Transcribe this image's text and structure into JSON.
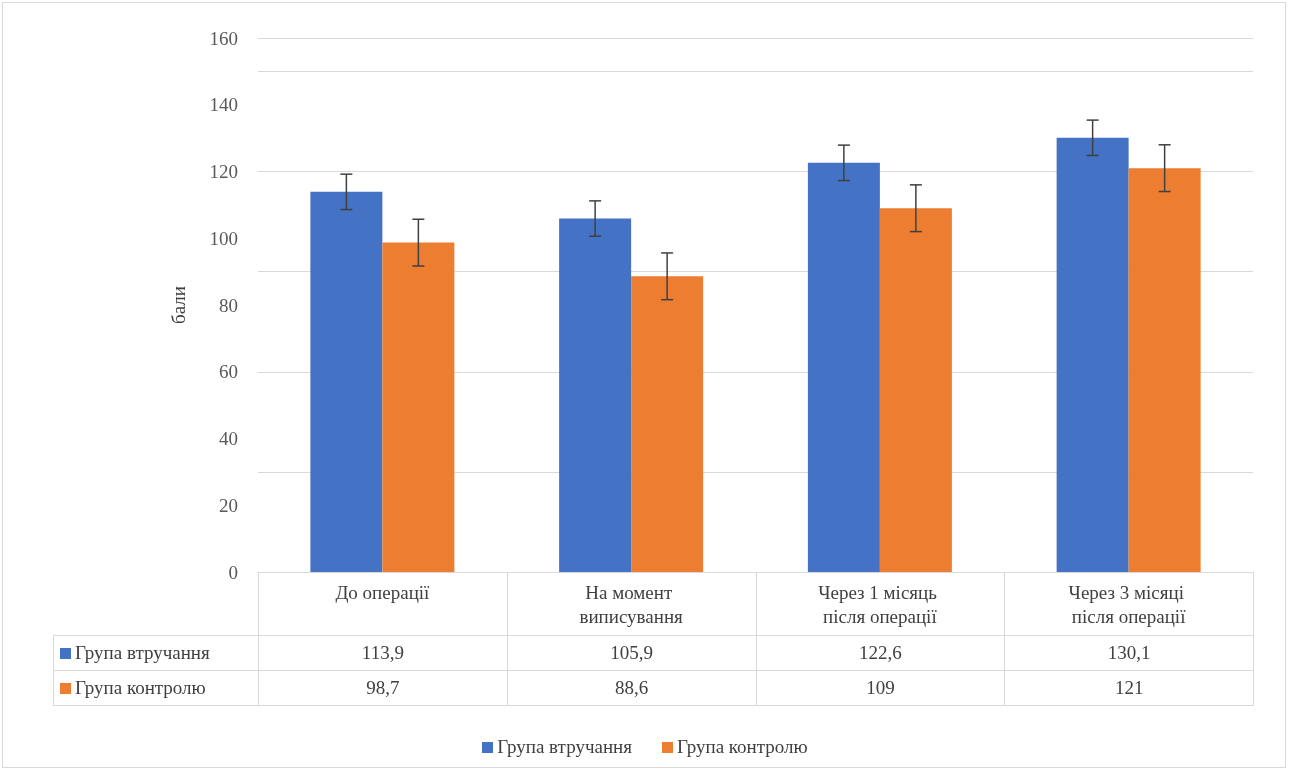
{
  "chart_data": {
    "type": "bar",
    "ylabel": "бали",
    "categories": [
      "До операції",
      "На момент виписування",
      "Через 1 місяць після операції",
      "Через 3 місяці після операції"
    ],
    "series": [
      {
        "name": "Група втручання",
        "color": "#4472c4",
        "values": [
          113.9,
          105.9,
          122.6,
          130.1
        ],
        "value_labels": [
          "113,9",
          "105,9",
          "122,6",
          "130,1"
        ],
        "errors": [
          5.3,
          5.3,
          5.3,
          5.3
        ]
      },
      {
        "name": "Група контролю",
        "color": "#ed7d31",
        "values": [
          98.7,
          88.6,
          109,
          121
        ],
        "value_labels": [
          "98,7",
          "88,6",
          "109",
          "121"
        ],
        "errors": [
          7,
          7,
          7,
          7
        ]
      }
    ],
    "ylim": [
      0,
      160
    ],
    "yticks": [
      0,
      20,
      40,
      60,
      80,
      100,
      120,
      140,
      160
    ],
    "grid": "y",
    "legend": "bottom"
  }
}
